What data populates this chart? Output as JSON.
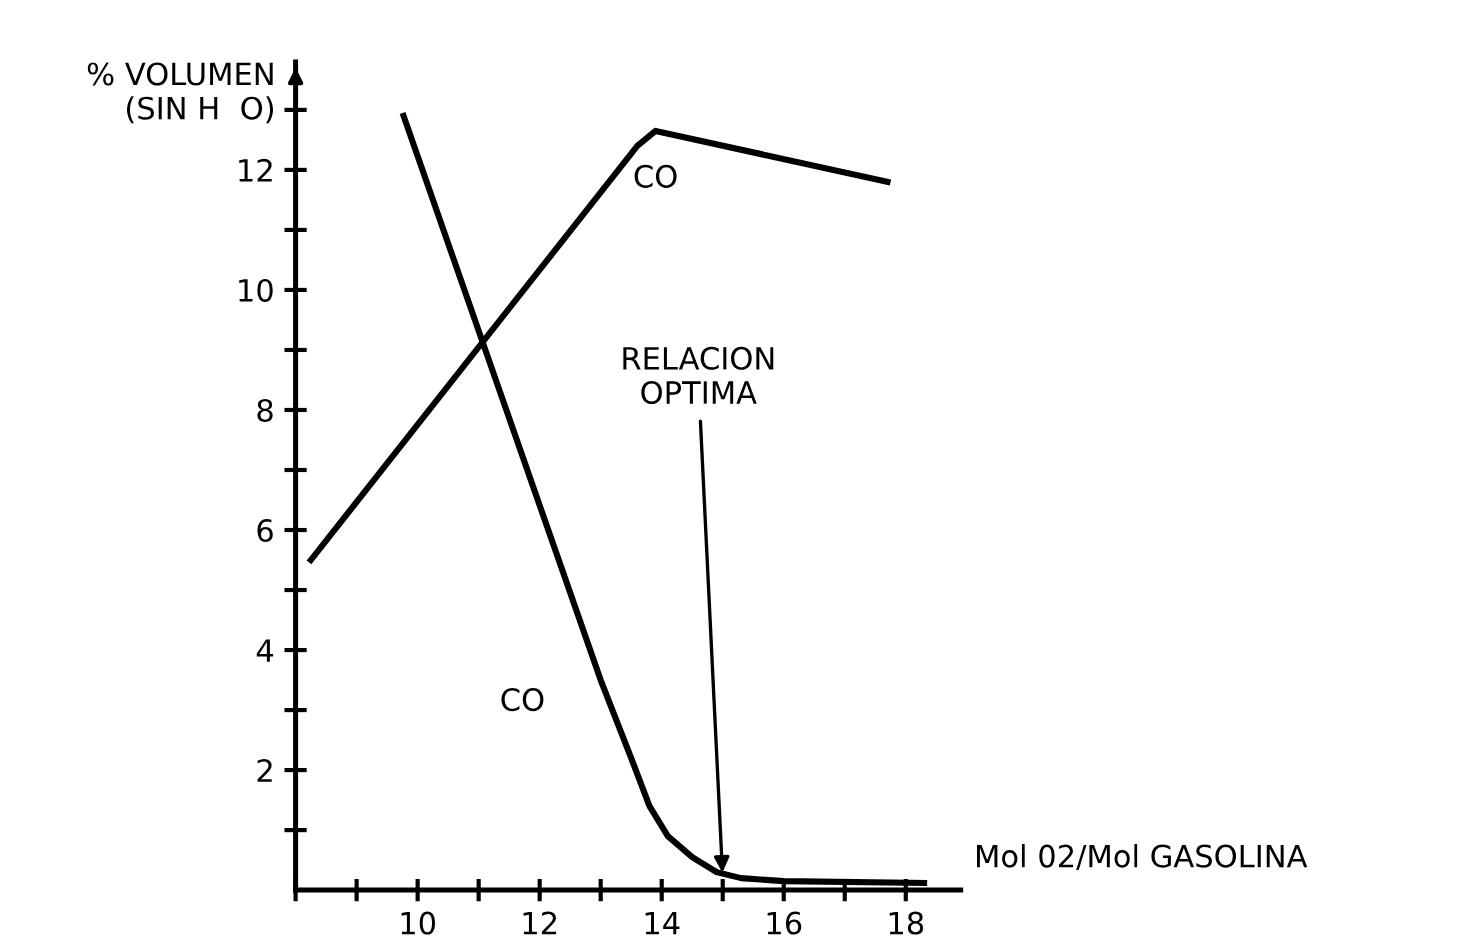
{
  "chart_data": {
    "type": "line",
    "xlabel": "Mol 02/Mol GASOLINA",
    "ylabel": "% VOLUMEN\n(SIN H  O)",
    "xlim": [
      8,
      18.9
    ],
    "ylim": [
      0,
      13.8
    ],
    "xticks": [
      {
        "value": 8,
        "label": null
      },
      {
        "value": 9,
        "label": null
      },
      10,
      {
        "value": 11,
        "label": null
      },
      12,
      {
        "value": 13,
        "label": null
      },
      14,
      {
        "value": 15,
        "label": null
      },
      16,
      {
        "value": 17,
        "label": null
      },
      18
    ],
    "yticks": [
      {
        "value": 1,
        "label": null
      },
      2,
      {
        "value": 3,
        "label": null
      },
      4,
      {
        "value": 5,
        "label": null
      },
      6,
      {
        "value": 7,
        "label": null
      },
      8,
      {
        "value": 9,
        "label": null
      },
      10,
      {
        "value": 11,
        "label": null
      },
      12,
      {
        "value": 13,
        "label": null
      }
    ],
    "grid": false,
    "legend": false,
    "marker": "none",
    "line_style": "solid",
    "series": [
      {
        "name": "CO",
        "color": "#000000",
        "x": [
          8.25,
          13.6,
          13.9,
          17.7
        ],
        "values": [
          5.5,
          12.4,
          12.65,
          11.8
        ]
      },
      {
        "name": "CO",
        "color": "#000000",
        "x": [
          9.77,
          13.0,
          13.5,
          13.8,
          14.1,
          14.5,
          14.9,
          15.3,
          16.0,
          18.3
        ],
        "values": [
          12.9,
          3.5,
          2.2,
          1.4,
          0.9,
          0.55,
          0.3,
          0.2,
          0.15,
          0.12
        ]
      }
    ],
    "annotations": [
      {
        "text": "RELACION\nOPTIMA",
        "x": 15,
        "y": 0.2
      }
    ]
  }
}
